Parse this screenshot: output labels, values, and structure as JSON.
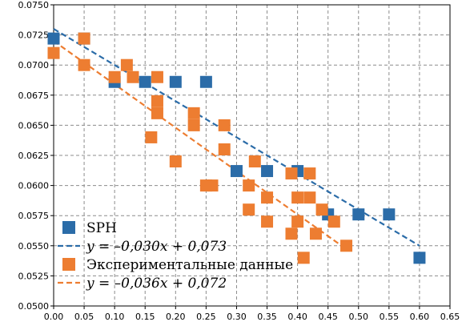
{
  "chart_data": {
    "type": "scatter",
    "title": "",
    "xlabel": "",
    "ylabel": "",
    "xlim": [
      0.0,
      0.65
    ],
    "ylim": [
      0.05,
      0.075
    ],
    "x_ticks": [
      "0.00",
      "0.05",
      "0.10",
      "0.15",
      "0.20",
      "0.25",
      "0.30",
      "0.35",
      "0.40",
      "0.45",
      "0.50",
      "0.55",
      "0.60",
      "0.65"
    ],
    "y_ticks": [
      "0.0500",
      "0.0525",
      "0.0550",
      "0.0575",
      "0.0600",
      "0.0625",
      "0.0650",
      "0.0675",
      "0.0700",
      "0.0725",
      "0.0750"
    ],
    "grid": true,
    "legend_position": "bottom-left",
    "series": [
      {
        "name": "SPH",
        "kind": "scatter",
        "color": "#2b6ca8",
        "points": [
          [
            0.0,
            0.0722
          ],
          [
            0.05,
            0.0722
          ],
          [
            0.1,
            0.0686
          ],
          [
            0.15,
            0.0686
          ],
          [
            0.2,
            0.0686
          ],
          [
            0.25,
            0.0686
          ],
          [
            0.3,
            0.0612
          ],
          [
            0.35,
            0.0612
          ],
          [
            0.4,
            0.0612
          ],
          [
            0.45,
            0.0576
          ],
          [
            0.5,
            0.0576
          ],
          [
            0.55,
            0.0576
          ],
          [
            0.6,
            0.054
          ]
        ]
      },
      {
        "name": "y = –0,030x + 0,073",
        "kind": "line",
        "color": "#2b6ca8",
        "slope": -0.03,
        "intercept": 0.073,
        "x_range": [
          0.0,
          0.6
        ]
      },
      {
        "name": "Экспериментальные данные",
        "kind": "scatter",
        "color": "#ed7d31",
        "points": [
          [
            0.0,
            0.071
          ],
          [
            0.05,
            0.0722
          ],
          [
            0.05,
            0.07
          ],
          [
            0.1,
            0.069
          ],
          [
            0.12,
            0.07
          ],
          [
            0.13,
            0.069
          ],
          [
            0.17,
            0.069
          ],
          [
            0.17,
            0.067
          ],
          [
            0.17,
            0.066
          ],
          [
            0.16,
            0.064
          ],
          [
            0.2,
            0.062
          ],
          [
            0.23,
            0.066
          ],
          [
            0.23,
            0.065
          ],
          [
            0.25,
            0.06
          ],
          [
            0.26,
            0.06
          ],
          [
            0.28,
            0.065
          ],
          [
            0.28,
            0.063
          ],
          [
            0.32,
            0.06
          ],
          [
            0.32,
            0.058
          ],
          [
            0.33,
            0.062
          ],
          [
            0.35,
            0.059
          ],
          [
            0.35,
            0.057
          ],
          [
            0.39,
            0.061
          ],
          [
            0.39,
            0.056
          ],
          [
            0.4,
            0.059
          ],
          [
            0.4,
            0.057
          ],
          [
            0.41,
            0.054
          ],
          [
            0.42,
            0.061
          ],
          [
            0.42,
            0.059
          ],
          [
            0.43,
            0.056
          ],
          [
            0.44,
            0.058
          ],
          [
            0.46,
            0.057
          ],
          [
            0.48,
            0.055
          ]
        ]
      },
      {
        "name": "y = –0,036x + 0,072",
        "kind": "line",
        "color": "#ed7d31",
        "slope": -0.036,
        "intercept": 0.072,
        "x_range": [
          0.0,
          0.48
        ]
      }
    ],
    "legend": [
      {
        "label": "SPH",
        "marker": "square",
        "color": "#2b6ca8",
        "style": "roman"
      },
      {
        "label": "y = –0,030x + 0,073",
        "marker": "dash",
        "color": "#2b6ca8",
        "style": "italic"
      },
      {
        "label": "Экспериментальные данные",
        "marker": "square",
        "color": "#ed7d31",
        "style": "roman"
      },
      {
        "label": "y = –0,036x + 0,072",
        "marker": "dash",
        "color": "#ed7d31",
        "style": "italic"
      }
    ]
  }
}
